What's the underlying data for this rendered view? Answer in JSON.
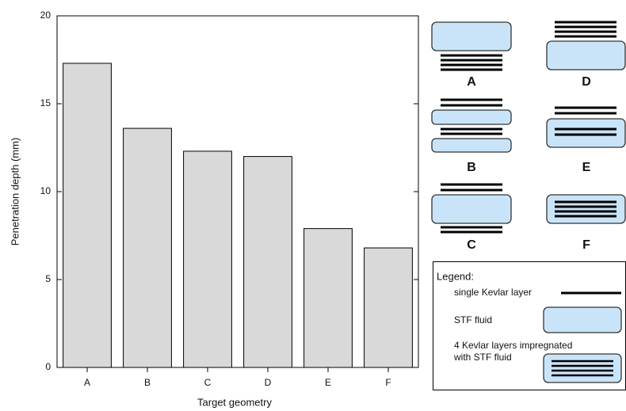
{
  "chart_data": {
    "type": "bar",
    "x_label": "Target geometry",
    "y_label": "Penetration depth (mm)",
    "categories": [
      "A",
      "B",
      "C",
      "D",
      "E",
      "F"
    ],
    "values": [
      17.3,
      13.6,
      12.3,
      12.0,
      7.9,
      6.8
    ],
    "color": "#d9d9d9",
    "ylim": [
      0,
      20
    ],
    "yticks": [
      0,
      5,
      10,
      15,
      20
    ],
    "grid": false
  },
  "diagram": {
    "labels": [
      "A",
      "D",
      "B",
      "E",
      "C",
      "F"
    ],
    "legend": {
      "title": "Legend:",
      "items": [
        "single Kevlar layer",
        "STF fluid",
        "4 Kevlar layers impregnated",
        "with STF fluid"
      ]
    }
  }
}
